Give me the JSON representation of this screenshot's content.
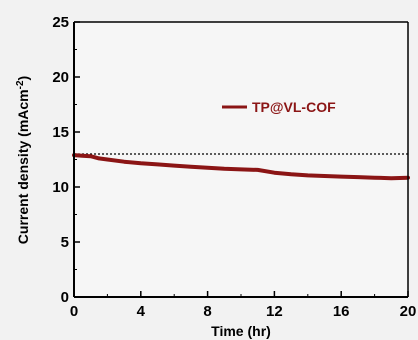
{
  "chart_data": {
    "type": "line",
    "xlabel": "Time (hr)",
    "ylabel": "Current density (mAcm",
    "ylabel_sup": "-2",
    "ylabel_end": ")",
    "xlim": [
      0,
      20
    ],
    "ylim": [
      0,
      25
    ],
    "xticks": [
      0,
      4,
      8,
      12,
      16,
      20
    ],
    "yticks": [
      0,
      5,
      10,
      15,
      20,
      25
    ],
    "grid": false,
    "legend_position": "upper-middle",
    "reference_line": {
      "y": 13.0,
      "style": "dotted"
    },
    "series": [
      {
        "name": "TP@VL-COF",
        "color": "#8b1515",
        "x": [
          0,
          0.5,
          1,
          1.5,
          2,
          3,
          4,
          5,
          6,
          7,
          8,
          9,
          10,
          11,
          12,
          13,
          14,
          15,
          16,
          17,
          18,
          19,
          20
        ],
        "y": [
          12.9,
          12.85,
          12.8,
          12.6,
          12.5,
          12.3,
          12.15,
          12.05,
          11.95,
          11.85,
          11.75,
          11.65,
          11.6,
          11.55,
          11.3,
          11.15,
          11.05,
          11.0,
          10.95,
          10.9,
          10.85,
          10.8,
          10.85
        ]
      }
    ]
  }
}
